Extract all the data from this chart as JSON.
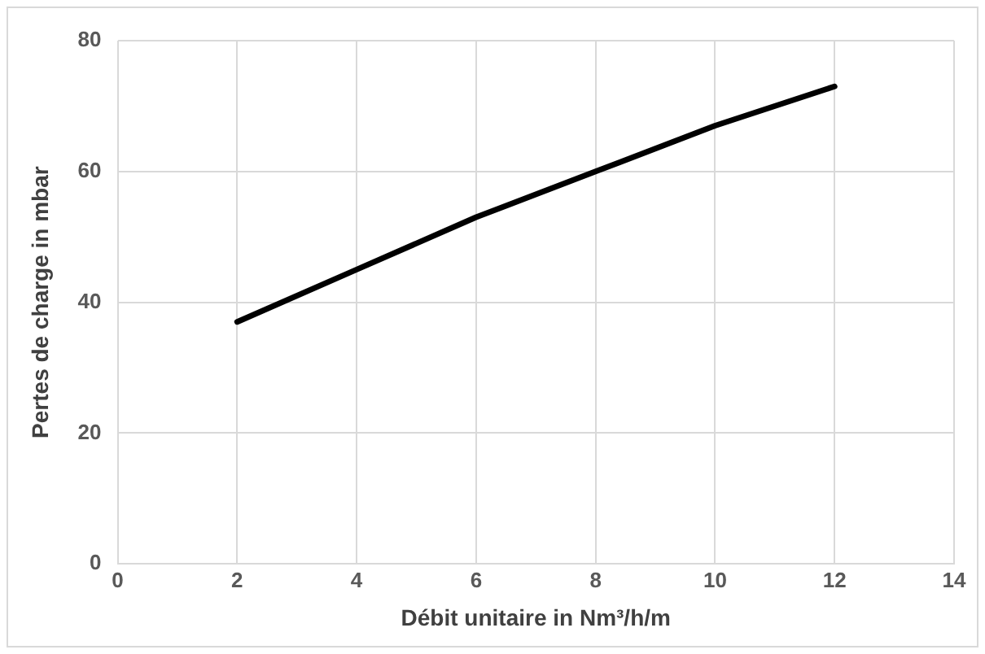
{
  "chart_data": {
    "type": "line",
    "xlabel": "Débit unitaire in Nm³/h/m",
    "ylabel": "Pertes de charge in mbar",
    "x": [
      2,
      4,
      6,
      8,
      10,
      12
    ],
    "series": [
      {
        "color": "#000000",
        "values": [
          37,
          45,
          53,
          60,
          67,
          73
        ]
      }
    ],
    "xlim": [
      0,
      14
    ],
    "xticks": [
      0,
      2,
      4,
      6,
      8,
      10,
      12,
      14
    ],
    "ylim": [
      0,
      80
    ],
    "yticks": [
      0,
      20,
      40,
      60,
      80
    ],
    "grid": true,
    "legend": false,
    "marker": "none",
    "line_style": "solid"
  }
}
